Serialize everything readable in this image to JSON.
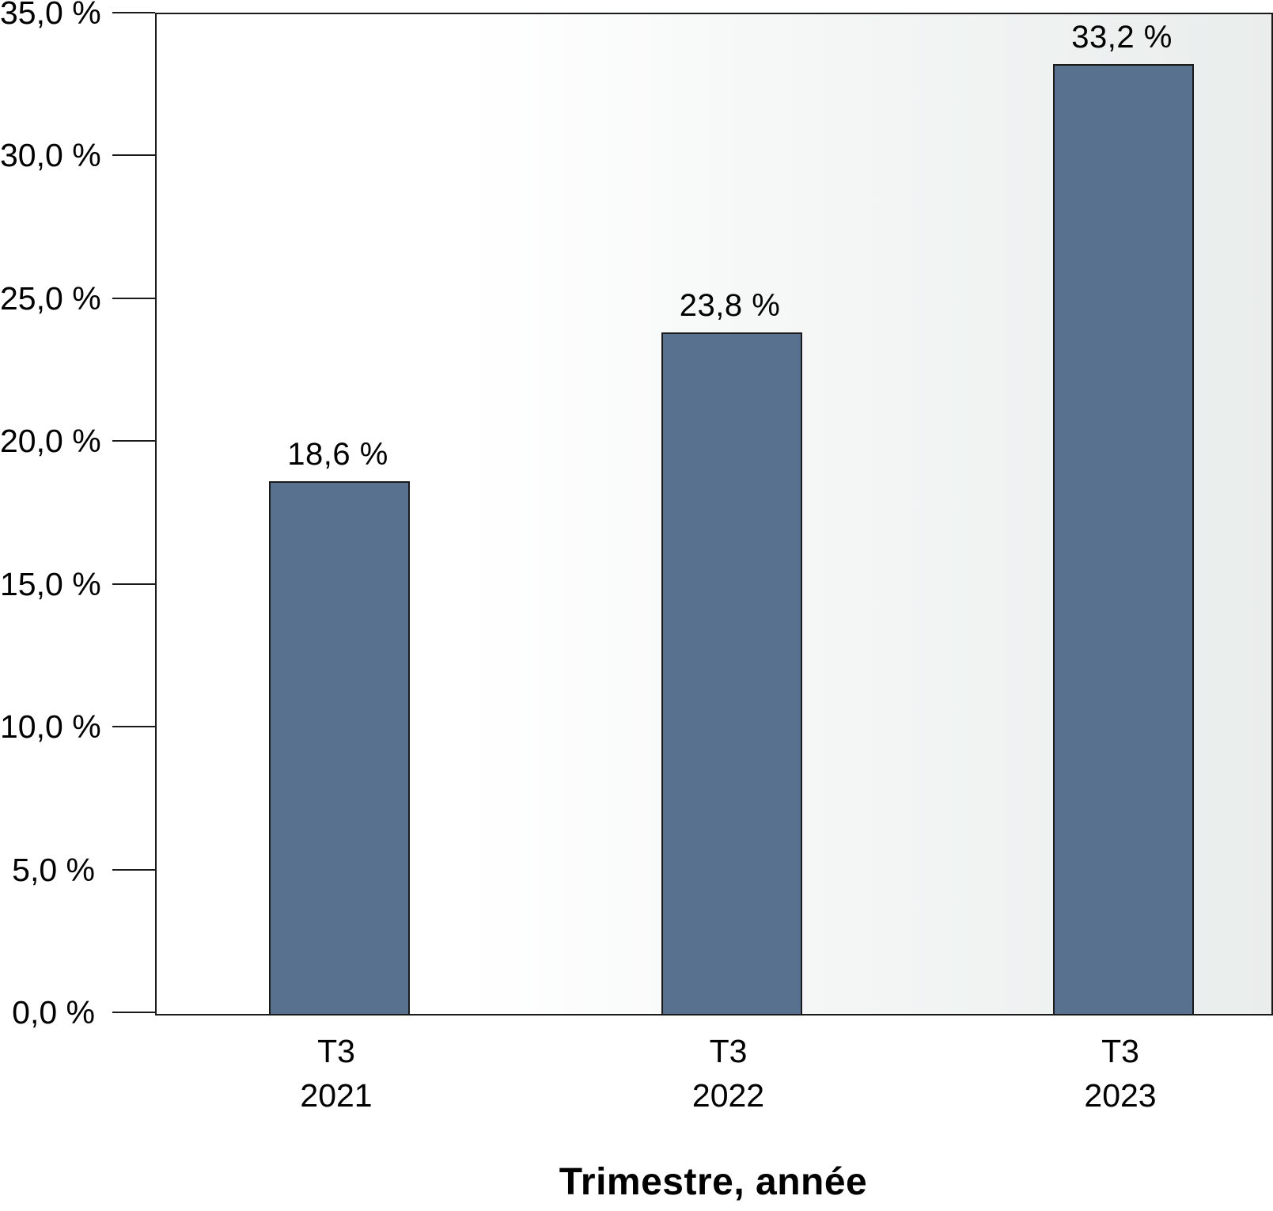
{
  "chart_data": {
    "type": "bar",
    "title": "",
    "xlabel": "Trimestre, année",
    "ylabel": "",
    "categories": [
      {
        "quarter": "T3",
        "year": "2021"
      },
      {
        "quarter": "T3",
        "year": "2022"
      },
      {
        "quarter": "T3",
        "year": "2023"
      }
    ],
    "values": [
      18.6,
      23.8,
      33.2
    ],
    "value_labels": [
      "18,6 %",
      "23,8 %",
      "33,2 %"
    ],
    "ylim": [
      0,
      35
    ],
    "ytick_step": 5,
    "ytick_labels": [
      "0,0 %",
      "5,0 %",
      "10,0 %",
      "15,0 %",
      "20,0 %",
      "25,0 %",
      "30,0 %",
      "35,0 %"
    ],
    "grid": false,
    "legend_position": "none",
    "colors": {
      "bar_fill": "#57718F",
      "bar_border": "#1a1a1a",
      "axis": "#1a1a1a",
      "text": "#000000",
      "plot_bg_left": "#ffffff",
      "plot_bg_right": "#e9edec"
    }
  }
}
